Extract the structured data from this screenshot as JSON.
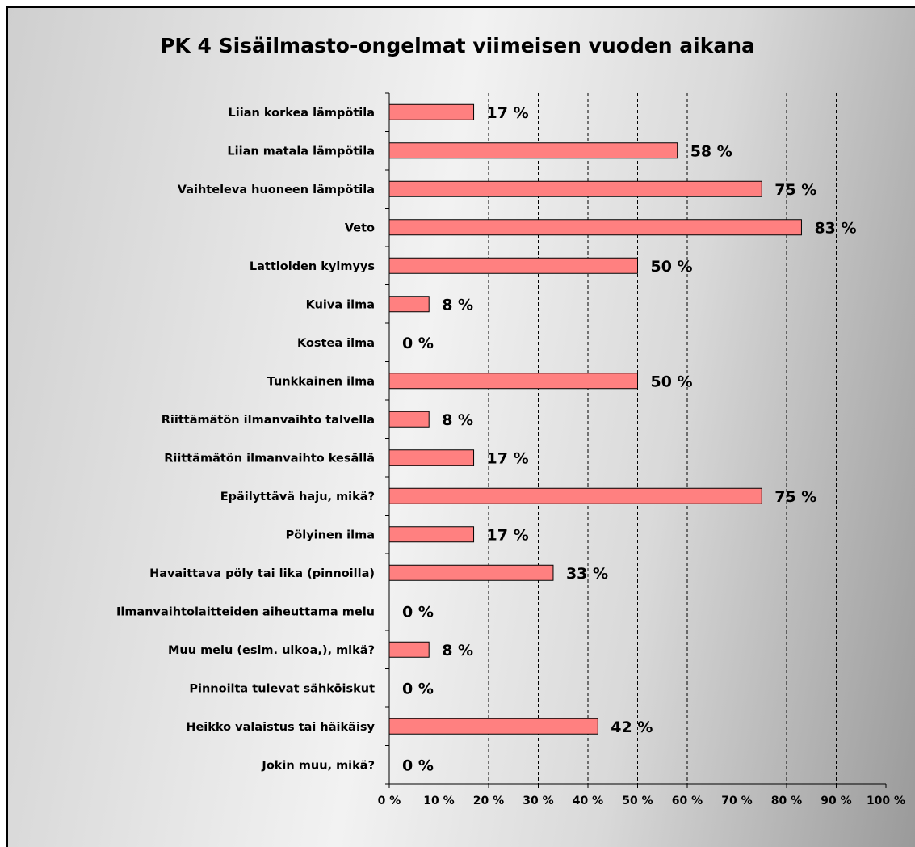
{
  "chart_data": {
    "type": "bar",
    "orientation": "horizontal",
    "title": "PK 4 Sisäilmasto-ongelmat viimeisen vuoden aikana",
    "categories": [
      "Liian korkea lämpötila",
      "Liian matala lämpötila",
      "Vaihteleva huoneen lämpötila",
      "Veto",
      "Lattioiden kylmyys",
      "Kuiva ilma",
      "Kostea ilma",
      "Tunkkainen ilma",
      "Riittämätön ilmanvaihto talvella",
      "Riittämätön ilmanvaihto kesällä",
      "Epäilyttävä haju, mikä?",
      "Pölyinen ilma",
      "Havaittava pöly tai lika (pinnoilla)",
      "Ilmanvaihtolaitteiden aiheuttama melu",
      "Muu melu (esim. ulkoa,), mikä?",
      "Pinnoilta tulevat sähköiskut",
      "Heikko valaistus tai häikäisy",
      "Jokin muu, mikä?"
    ],
    "values": [
      17,
      58,
      75,
      83,
      50,
      8,
      0,
      50,
      8,
      17,
      75,
      17,
      33,
      0,
      8,
      0,
      42,
      0
    ],
    "data_labels": [
      "17 %",
      "58 %",
      "75 %",
      "83 %",
      "50 %",
      "8 %",
      "0 %",
      "50 %",
      "8 %",
      "17 %",
      "75 %",
      "17 %",
      "33 %",
      "0 %",
      "8 %",
      "0 %",
      "42 %",
      "0 %"
    ],
    "xlim": [
      0,
      100
    ],
    "x_ticks": [
      0,
      10,
      20,
      30,
      40,
      50,
      60,
      70,
      80,
      90,
      100
    ],
    "x_tick_labels": [
      "0 %",
      "10 %",
      "20 %",
      "30 %",
      "40 %",
      "50 %",
      "60 %",
      "70 %",
      "80 %",
      "90 %",
      "100 %"
    ],
    "grid": "vertical dashed",
    "colors": {
      "bar_fill": "#ff8080",
      "bar_stroke": "#000000",
      "grid": "#000000"
    }
  }
}
